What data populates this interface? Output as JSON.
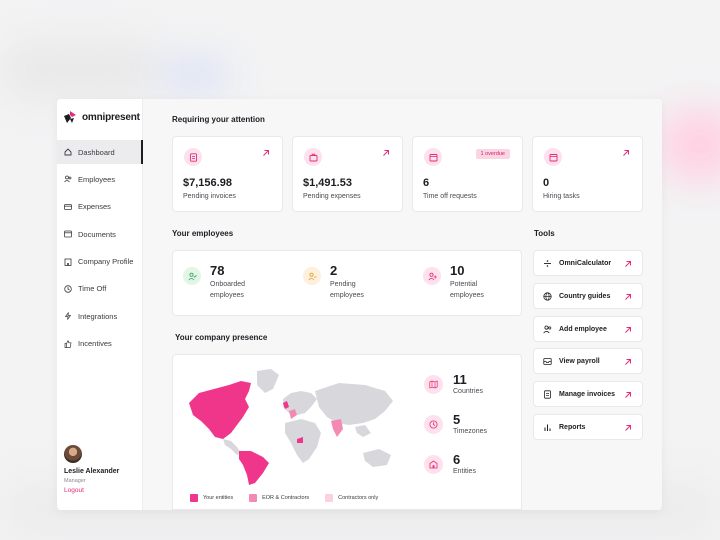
{
  "brand": {
    "name": "omnipresent",
    "accent": "#e8287a",
    "accent_light": "#fde1ec"
  },
  "sidebar": {
    "items": [
      {
        "label": "Dashboard",
        "icon": "home-icon",
        "active": true
      },
      {
        "label": "Employees",
        "icon": "users-icon"
      },
      {
        "label": "Expenses",
        "icon": "card-icon"
      },
      {
        "label": "Documents",
        "icon": "document-icon"
      },
      {
        "label": "Company Profile",
        "icon": "building-icon"
      },
      {
        "label": "Time Off",
        "icon": "clock-icon"
      },
      {
        "label": "Integrations",
        "icon": "bolt-icon"
      },
      {
        "label": "Incentives",
        "icon": "thumbs-up-icon"
      }
    ]
  },
  "user": {
    "name": "Leslie Alexander",
    "role": "Manager",
    "logout": "Logout"
  },
  "attention": {
    "title": "Requiring your attention",
    "cards": [
      {
        "value": "$7,156.98",
        "label": "Pending invoices",
        "icon": "invoice-icon"
      },
      {
        "value": "$1,491.53",
        "label": "Pending expenses",
        "icon": "briefcase-icon"
      },
      {
        "value": "6",
        "label": "Time off requests",
        "icon": "calendar-icon",
        "badge": "1 overdue"
      },
      {
        "value": "0",
        "label": "Hiring tasks",
        "icon": "calendar-icon"
      }
    ]
  },
  "employees": {
    "title": "Your employees",
    "items": [
      {
        "value": "78",
        "label": "Onboarded employees",
        "icon": "user-check-icon",
        "color": "#e3f5e6"
      },
      {
        "value": "2",
        "label": "Pending employees",
        "icon": "user-pending-icon",
        "color": "#fdf0dc"
      },
      {
        "value": "10",
        "label": "Potential employees",
        "icon": "user-plus-icon",
        "color": "#fde1ec"
      }
    ]
  },
  "presence": {
    "title": "Your company presence",
    "stats": [
      {
        "value": "11",
        "label": "Countries",
        "icon": "map-icon"
      },
      {
        "value": "5",
        "label": "Timezones",
        "icon": "clock-icon"
      },
      {
        "value": "6",
        "label": "Entities",
        "icon": "building-icon"
      }
    ],
    "legend": [
      {
        "label": "Your entities",
        "color": "#f0368a"
      },
      {
        "label": "EOR & Contractors",
        "color": "#f38ab4"
      },
      {
        "label": "Contractors only",
        "color": "#fbd1e2"
      }
    ]
  },
  "tools": {
    "title": "Tools",
    "items": [
      {
        "label": "OmniCalculator",
        "icon": "calculator-icon"
      },
      {
        "label": "Country guides",
        "icon": "globe-icon"
      },
      {
        "label": "Add employee",
        "icon": "add-user-icon"
      },
      {
        "label": "View payroll",
        "icon": "inbox-icon"
      },
      {
        "label": "Manage invoices",
        "icon": "invoice-icon"
      },
      {
        "label": "Reports",
        "icon": "bar-chart-icon"
      }
    ]
  }
}
